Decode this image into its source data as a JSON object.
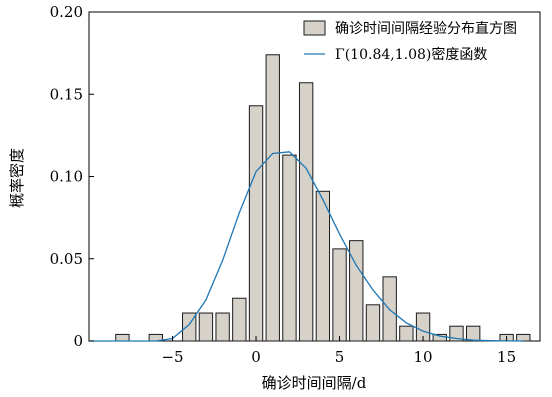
{
  "chart_data": {
    "type": "bar",
    "xlabel": "确诊时间间隔/d",
    "ylabel": "概率密度",
    "xlim": [
      -10,
      17
    ],
    "ylim": [
      0,
      0.2
    ],
    "x_ticks": [
      -5,
      0,
      5,
      10,
      15
    ],
    "x_tick_labels": [
      "−5",
      "0",
      "5",
      "10",
      "15"
    ],
    "y_ticks": [
      0,
      0.05,
      0.1,
      0.15,
      0.2
    ],
    "y_tick_labels": [
      "0",
      "0.05",
      "0.10",
      "0.15",
      "0.20"
    ],
    "legend_position": "top-right",
    "legend": {
      "bars": "确诊时间间隔经验分布直方图",
      "curve": "Γ(10.84,1.08)密度函数"
    },
    "colors": {
      "bar_fill": "#d6d2ca",
      "bar_stroke": "#1a1a1a",
      "curve": "#1f77b4"
    },
    "bins": [
      {
        "x": -8,
        "value": 0.004
      },
      {
        "x": -6,
        "value": 0.004
      },
      {
        "x": -4,
        "value": 0.017
      },
      {
        "x": -3,
        "value": 0.017
      },
      {
        "x": -2,
        "value": 0.017
      },
      {
        "x": -1,
        "value": 0.026
      },
      {
        "x": 0,
        "value": 0.143
      },
      {
        "x": 1,
        "value": 0.174
      },
      {
        "x": 2,
        "value": 0.113
      },
      {
        "x": 3,
        "value": 0.157
      },
      {
        "x": 4,
        "value": 0.091
      },
      {
        "x": 5,
        "value": 0.056
      },
      {
        "x": 6,
        "value": 0.061
      },
      {
        "x": 7,
        "value": 0.022
      },
      {
        "x": 8,
        "value": 0.039
      },
      {
        "x": 9,
        "value": 0.009
      },
      {
        "x": 10,
        "value": 0.017
      },
      {
        "x": 11,
        "value": 0.004
      },
      {
        "x": 12,
        "value": 0.009
      },
      {
        "x": 13,
        "value": 0.009
      },
      {
        "x": 15,
        "value": 0.004
      },
      {
        "x": 16,
        "value": 0.004
      }
    ],
    "curve": {
      "name": "Γ(10.84,1.08)密度函数",
      "x": [
        -10,
        -8,
        -7,
        -6,
        -5,
        -4,
        -3,
        -2,
        -1,
        0,
        1,
        2,
        3,
        4,
        5,
        6,
        7,
        8,
        9,
        10,
        11,
        12,
        13,
        14,
        15,
        16
      ],
      "y": [
        0.0,
        0.0,
        0.0,
        0.0,
        0.0015,
        0.01,
        0.025,
        0.049,
        0.078,
        0.103,
        0.114,
        0.115,
        0.105,
        0.086,
        0.065,
        0.046,
        0.031,
        0.019,
        0.011,
        0.006,
        0.003,
        0.0015,
        0.0005,
        0.0002,
        0.0001,
        0.0
      ]
    }
  }
}
